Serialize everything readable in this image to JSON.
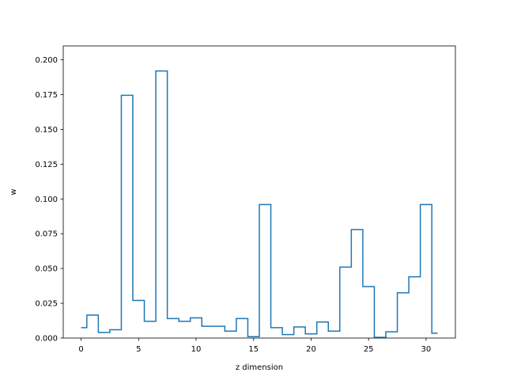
{
  "chart_data": {
    "type": "line",
    "subtype": "step",
    "xlabel": "z dimension",
    "ylabel": "w",
    "xlim": [
      -1.55,
      32.55
    ],
    "ylim": [
      0.0,
      0.21
    ],
    "x_ticks": [
      0,
      5,
      10,
      15,
      20,
      25,
      30
    ],
    "x_tick_labels": [
      "0",
      "5",
      "10",
      "15",
      "20",
      "25",
      "30"
    ],
    "y_ticks": [
      0.0,
      0.025,
      0.05,
      0.075,
      0.1,
      0.125,
      0.15,
      0.175,
      0.2
    ],
    "y_tick_labels": [
      "0.000",
      "0.025",
      "0.050",
      "0.075",
      "0.100",
      "0.125",
      "0.150",
      "0.175",
      "0.200"
    ],
    "grid": false,
    "line_color": "#1f77b4",
    "x": [
      0,
      1,
      2,
      3,
      4,
      5,
      6,
      7,
      8,
      9,
      10,
      11,
      12,
      13,
      14,
      15,
      16,
      17,
      18,
      19,
      20,
      21,
      22,
      23,
      24,
      25,
      26,
      27,
      28,
      29,
      30,
      31
    ],
    "values": [
      0.0075,
      0.0165,
      0.004,
      0.006,
      0.1745,
      0.027,
      0.012,
      0.192,
      0.014,
      0.012,
      0.0145,
      0.0085,
      0.0085,
      0.005,
      0.014,
      0.001,
      0.096,
      0.0075,
      0.0025,
      0.008,
      0.003,
      0.0115,
      0.005,
      0.051,
      0.078,
      0.037,
      0.0005,
      0.0045,
      0.0325,
      0.044,
      0.096,
      0.0035
    ]
  }
}
